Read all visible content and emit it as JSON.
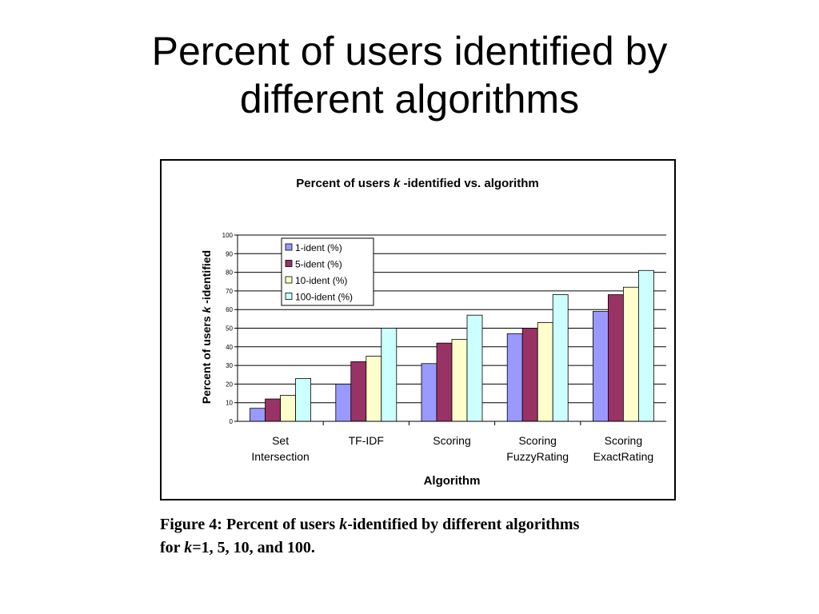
{
  "slide": {
    "title_line1": "Percent of users identified by",
    "title_line2": "different algorithms"
  },
  "caption": {
    "part1": "Figure 4: Percent of users ",
    "k1": "k",
    "part2": "-identified by different algorithms",
    "part3": "for ",
    "k2": "k",
    "part4": "=1, 5, 10, and 100."
  },
  "chart_data": {
    "type": "bar",
    "title_prefix": "Percent of users ",
    "title_k": "k",
    "title_suffix": " -identified vs. algorithm",
    "xlabel": "Algorithm",
    "ylabel_prefix": "Percent of users ",
    "ylabel_k": "k",
    "ylabel_suffix": " -identified",
    "ylim": [
      0,
      100
    ],
    "yticks": [
      "0",
      "10",
      "20",
      "30",
      "40",
      "50",
      "60",
      "70",
      "80",
      "90",
      "100"
    ],
    "grid": true,
    "legend_position": "top-left",
    "categories": [
      [
        "Set",
        "Intersection"
      ],
      [
        "TF-IDF"
      ],
      [
        "Scoring"
      ],
      [
        "Scoring",
        "FuzzyRating"
      ],
      [
        "Scoring",
        "ExactRating"
      ]
    ],
    "series": [
      {
        "name": "1-ident (%)",
        "color": "#9999ff",
        "values": [
          7,
          20,
          31,
          47,
          59
        ]
      },
      {
        "name": "5-ident (%)",
        "color": "#993366",
        "values": [
          12,
          32,
          42,
          50,
          68
        ]
      },
      {
        "name": "10-ident (%)",
        "color": "#ffffcc",
        "values": [
          14,
          35,
          44,
          53,
          72
        ]
      },
      {
        "name": "100-ident (%)",
        "color": "#ccffff",
        "values": [
          23,
          50,
          57,
          68,
          81
        ]
      }
    ]
  }
}
